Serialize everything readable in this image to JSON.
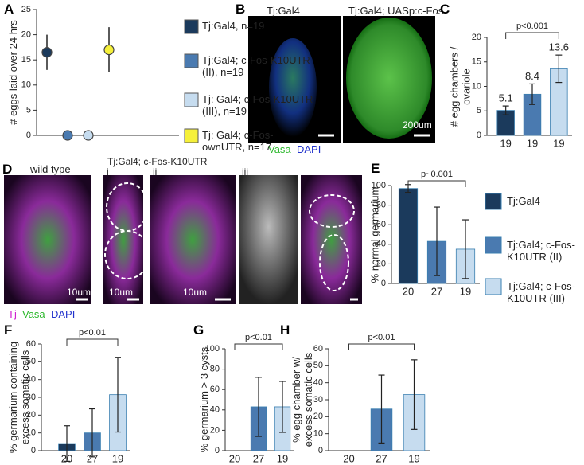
{
  "chart_data": [
    {
      "type": "dot",
      "label": "A",
      "ylabel": "# eggs laid over 24 hrs",
      "categories": [
        "Tj:Gal4, n=19",
        "Tj:Gal4; c-Fos-K10UTR (II), n=19",
        "Tj: Gal4; c-Fos-K10UTR (III), n=19",
        "Tj: Gal4; c-Fos-ownUTR, n=17"
      ],
      "values": [
        16.5,
        0,
        0,
        17
      ],
      "errors": [
        3.5,
        0,
        0,
        4.5
      ],
      "colors": [
        "#1b3a5c",
        "#4a7ab0",
        "#c6dcef",
        "#f5f03a"
      ],
      "ylim": [
        0,
        25
      ],
      "yticks": [
        0,
        5,
        10,
        15,
        20,
        25
      ]
    },
    {
      "type": "bar",
      "label": "C",
      "ylabel": "# egg chambers / ovariole",
      "categories": [
        "19",
        "19",
        "19"
      ],
      "values": [
        5.1,
        8.4,
        13.6
      ],
      "errors": [
        0.9,
        2.1,
        2.8
      ],
      "colors": [
        "#1b3a5c",
        "#4a7ab0",
        "#c6dcef"
      ],
      "data_labels": true,
      "ylim": [
        0,
        20
      ],
      "yticks": [
        0,
        5,
        10,
        15,
        20
      ],
      "annotation": "p<0.001"
    },
    {
      "type": "bar",
      "label": "E",
      "ylabel": "% normal germarium",
      "categories": [
        "20",
        "27",
        "19"
      ],
      "values": [
        97,
        43,
        35
      ],
      "errors": [
        4,
        35,
        30
      ],
      "colors": [
        "#1b3a5c",
        "#4a7ab0",
        "#c6dcef"
      ],
      "ylim": [
        0,
        100
      ],
      "yticks": [
        0,
        20,
        40,
        60,
        80,
        100
      ],
      "annotation": "p~0.001",
      "legend": [
        {
          "name": "Tj:Gal4",
          "color": "#1b3a5c"
        },
        {
          "name": "Tj:Gal4; c-Fos-K10UTR (II)",
          "color": "#4a7ab0"
        },
        {
          "name": "Tj:Gal4; c-Fos-K10UTR (III)",
          "color": "#c6dcef"
        }
      ]
    },
    {
      "type": "bar",
      "label": "F",
      "ylabel": "% germarium containing excess somatic cells",
      "categories": [
        "20",
        "27",
        "19"
      ],
      "values": [
        4,
        10,
        31.5
      ],
      "errors": [
        10,
        13.5,
        21
      ],
      "colors": [
        "#1b3a5c",
        "#4a7ab0",
        "#c6dcef"
      ],
      "ylim": [
        0,
        60
      ],
      "yticks": [
        0,
        10,
        20,
        30,
        40,
        50,
        60
      ],
      "annotation": "p<0.01"
    },
    {
      "type": "bar",
      "label": "G",
      "ylabel": "% germarium > 3 cysts",
      "categories": [
        "20",
        "27",
        "19"
      ],
      "values": [
        0,
        43,
        43
      ],
      "errors": [
        0,
        29,
        25
      ],
      "colors": [
        "#1b3a5c",
        "#4a7ab0",
        "#c6dcef"
      ],
      "ylim": [
        0,
        100
      ],
      "yticks": [
        0,
        20,
        40,
        60,
        80,
        100
      ],
      "annotation": "p<0.01"
    },
    {
      "type": "bar",
      "label": "H",
      "ylabel": "% egg chamber w/ excess somatic cells",
      "categories": [
        "20",
        "27",
        "19"
      ],
      "values": [
        0,
        24.5,
        33
      ],
      "errors": [
        0,
        20,
        20.5
      ],
      "colors": [
        "#1b3a5c",
        "#4a7ab0",
        "#c6dcef"
      ],
      "ylim": [
        0,
        60
      ],
      "yticks": [
        0,
        10,
        20,
        30,
        40,
        50,
        60
      ],
      "annotation": "p<0.01"
    }
  ],
  "images": [
    {
      "label": "B",
      "titles": [
        "Tj:Gal4",
        "Tj:Gal4; UASp:c-Fos"
      ],
      "scale_bar": "200um",
      "stains": [
        "Vasa",
        "DAPI"
      ]
    },
    {
      "label": "D",
      "titles": [
        "wild type",
        "Tj:Gal4; c-Fos-K10UTR"
      ],
      "subpanels": [
        "i",
        "ii",
        "iii"
      ],
      "scale_bars": [
        "10um",
        "10um",
        "10um"
      ],
      "stains": [
        "Tj",
        "Vasa",
        "DAPI"
      ]
    }
  ]
}
